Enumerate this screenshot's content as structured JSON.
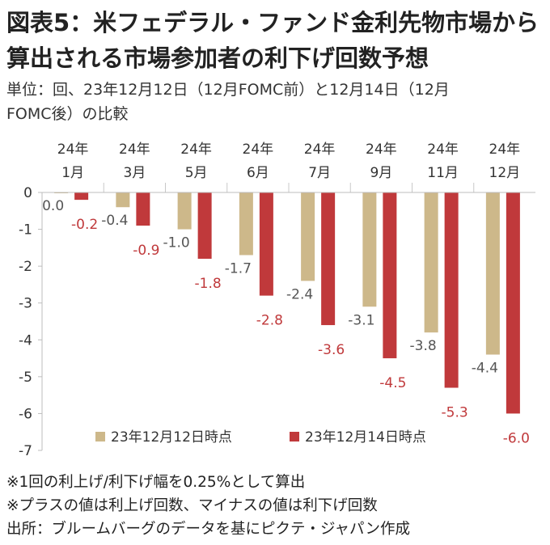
{
  "title_line1": "図表5：米フェデラル・ファンド金利先物市場から",
  "title_line2": "算出される市場参加者の利下げ回数予想",
  "unit_line1": "単位：回、23年12月12日（12月FOMC前）と12月14日（12月",
  "unit_line2": "FOMC後）の比較",
  "notes": [
    "※1回の利上げ/利下げ幅を0.25%として算出",
    "※プラスの値は利上げ回数、マイナスの値は利下げ回数",
    "出所：ブルームバーグのデータを基にピクテ・ジャパン作成"
  ],
  "chart_data": {
    "type": "bar",
    "title": "",
    "xlabel": "",
    "ylabel": "",
    "categories": [
      [
        "24年",
        "1月"
      ],
      [
        "24年",
        "3月"
      ],
      [
        "24年",
        "5月"
      ],
      [
        "24年",
        "6月"
      ],
      [
        "24年",
        "7月"
      ],
      [
        "24年",
        "9月"
      ],
      [
        "24年",
        "11月"
      ],
      [
        "24年",
        "12月"
      ]
    ],
    "category_axis_position": "top",
    "series": [
      {
        "name": "23年12月12日時点",
        "color": "#cdb88a",
        "label_color": "#555555",
        "values": [
          0.0,
          -0.4,
          -1.0,
          -1.7,
          -2.4,
          -3.1,
          -3.8,
          -4.4
        ],
        "labels": [
          "0.0",
          "-0.4",
          "-1.0",
          "-1.7",
          "-2.4",
          "-3.1",
          "-3.8",
          "-4.4"
        ]
      },
      {
        "name": "23年12月14日時点",
        "color": "#c0393b",
        "label_color": "#c0393b",
        "values": [
          -0.2,
          -0.9,
          -1.8,
          -2.8,
          -3.6,
          -4.5,
          -5.3,
          -6.0
        ],
        "labels": [
          "-0.2",
          "-0.9",
          "-1.8",
          "-2.8",
          "-3.6",
          "-4.5",
          "-5.3",
          "-6.0"
        ]
      }
    ],
    "ylim": [
      -7,
      0
    ],
    "yticks": [
      0,
      -1,
      -2,
      -3,
      -4,
      -5,
      -6,
      -7
    ],
    "ytick_labels": [
      "0",
      "-1",
      "-2",
      "-3",
      "-4",
      "-5",
      "-6",
      "-7"
    ],
    "grid": "vertical separators between categories",
    "legend_position": "bottom"
  }
}
